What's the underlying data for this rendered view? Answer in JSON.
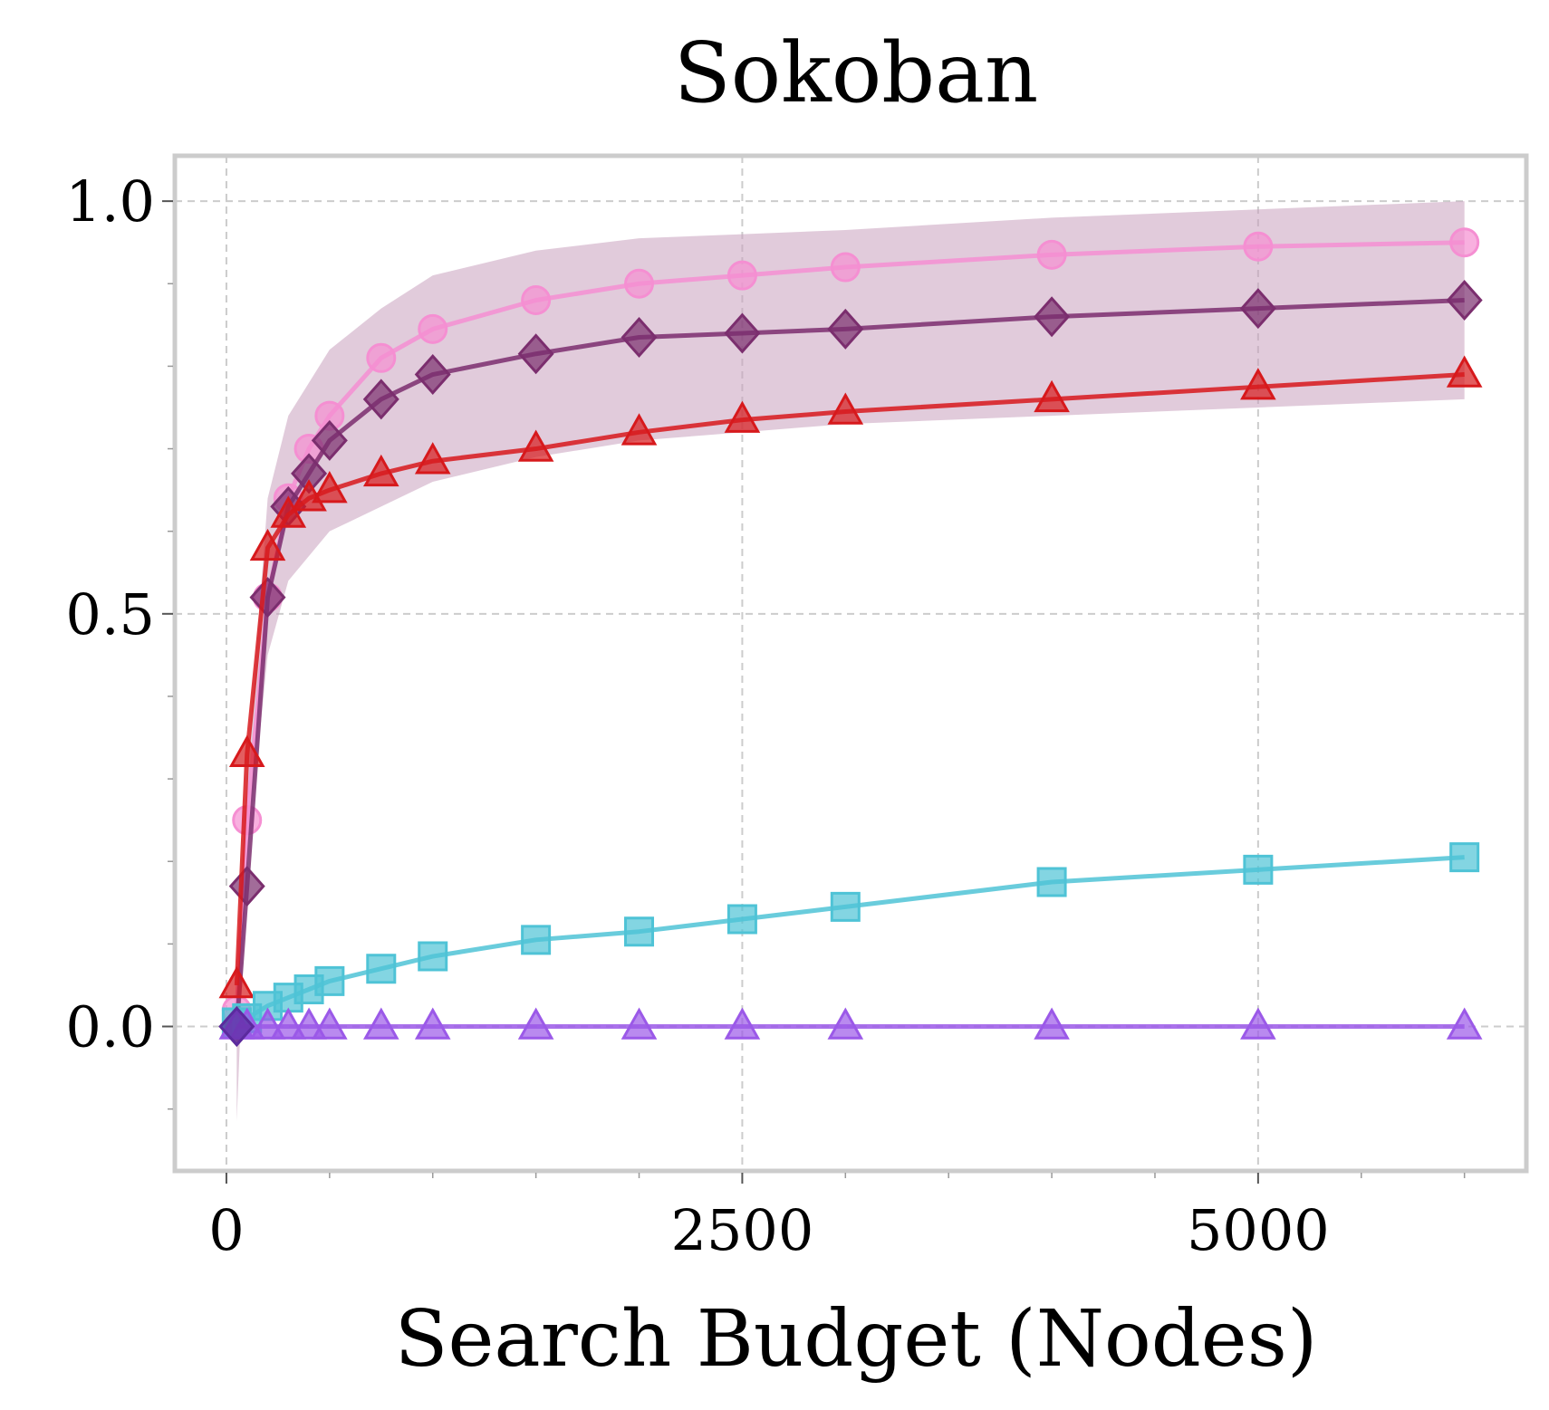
{
  "chart_data": {
    "type": "line",
    "title": "Sokoban",
    "xlabel": "Search Budget (Nodes)",
    "ylabel": "",
    "xlim": [
      -250,
      6300
    ],
    "ylim": [
      -0.175,
      1.055
    ],
    "x_ticks": [
      0,
      2500,
      5000
    ],
    "x_tick_labels": [
      "0",
      "2500",
      "5000"
    ],
    "y_ticks": [
      0.0,
      0.5,
      1.0
    ],
    "y_tick_labels": [
      "0.0",
      "0.5",
      "1.0"
    ],
    "x_minor_ticks": [
      500,
      1000,
      1500,
      2000,
      3000,
      3500,
      4000,
      4500,
      5500,
      6000
    ],
    "y_minor_ticks": [
      -0.1,
      0.1,
      0.2,
      0.3,
      0.4,
      0.6,
      0.7,
      0.8,
      0.9
    ],
    "grid": true,
    "frame_color": "#cccccc",
    "band": {
      "color": "#c9a0bd",
      "x": [
        50,
        100,
        200,
        300,
        400,
        500,
        750,
        1000,
        1500,
        2000,
        2500,
        3000,
        4000,
        5000,
        6000
      ],
      "upper": [
        0.06,
        0.3,
        0.64,
        0.74,
        0.78,
        0.82,
        0.87,
        0.91,
        0.94,
        0.955,
        0.96,
        0.965,
        0.98,
        0.99,
        1.0
      ],
      "lower": [
        -0.115,
        0.2,
        0.45,
        0.54,
        0.57,
        0.6,
        0.63,
        0.66,
        0.69,
        0.71,
        0.72,
        0.73,
        0.74,
        0.75,
        0.76
      ]
    },
    "series": [
      {
        "color": "#f58fd2",
        "marker": "circle",
        "x": [
          50,
          100,
          200,
          300,
          400,
          500,
          750,
          1000,
          1500,
          2000,
          2500,
          3000,
          4000,
          5000,
          6000
        ],
        "y": [
          0.02,
          0.25,
          0.52,
          0.64,
          0.7,
          0.74,
          0.81,
          0.845,
          0.88,
          0.9,
          0.91,
          0.92,
          0.935,
          0.945,
          0.95
        ]
      },
      {
        "color": "#7b2e6e",
        "marker": "diamond",
        "x": [
          50,
          100,
          200,
          300,
          400,
          500,
          750,
          1000,
          1500,
          2000,
          2500,
          3000,
          4000,
          5000,
          6000
        ],
        "y": [
          0.0,
          0.17,
          0.52,
          0.63,
          0.67,
          0.71,
          0.76,
          0.79,
          0.815,
          0.835,
          0.84,
          0.845,
          0.86,
          0.87,
          0.88
        ]
      },
      {
        "color": "#d7191c",
        "marker": "triangle",
        "x": [
          50,
          100,
          200,
          300,
          400,
          500,
          750,
          1000,
          1500,
          2000,
          2500,
          3000,
          4000,
          5000,
          6000
        ],
        "y": [
          0.05,
          0.33,
          0.58,
          0.62,
          0.64,
          0.65,
          0.67,
          0.685,
          0.7,
          0.72,
          0.735,
          0.745,
          0.76,
          0.775,
          0.79
        ]
      },
      {
        "color": "#4fc3d6",
        "marker": "square",
        "x": [
          50,
          100,
          200,
          300,
          400,
          500,
          750,
          1000,
          1500,
          2000,
          2500,
          3000,
          4000,
          5000,
          6000
        ],
        "y": [
          0.005,
          0.01,
          0.025,
          0.035,
          0.045,
          0.055,
          0.07,
          0.085,
          0.105,
          0.115,
          0.13,
          0.145,
          0.175,
          0.19,
          0.205
        ]
      },
      {
        "color": "#9b59e8",
        "marker": "triangle",
        "x": [
          50,
          100,
          200,
          300,
          400,
          500,
          750,
          1000,
          1500,
          2000,
          2500,
          3000,
          4000,
          5000,
          6000
        ],
        "y": [
          0,
          0,
          0,
          0,
          0,
          0,
          0,
          0,
          0,
          0,
          0,
          0,
          0,
          0,
          0
        ]
      },
      {
        "color": "#5b2a9e",
        "marker": "diamond",
        "x": [
          50
        ],
        "y": [
          0.0
        ]
      }
    ]
  }
}
